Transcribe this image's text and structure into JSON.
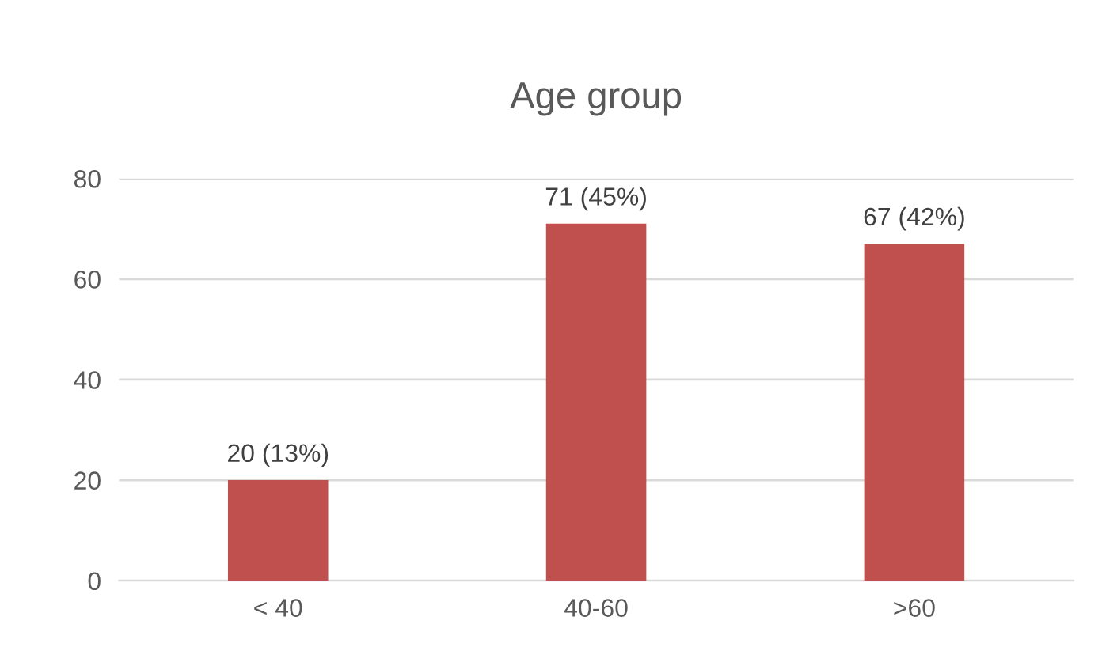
{
  "chart_data": {
    "type": "bar",
    "title": "Age group",
    "categories": [
      "< 40",
      "40-60",
      ">60"
    ],
    "values": [
      20,
      71,
      67
    ],
    "value_labels": [
      "20 (13%)",
      "71 (45%)",
      "67 (42%)"
    ],
    "color": "#c0504d",
    "ylim": [
      0,
      80
    ],
    "yticks": [
      0,
      20,
      40,
      60,
      80
    ],
    "grid": "y",
    "legend": false
  }
}
